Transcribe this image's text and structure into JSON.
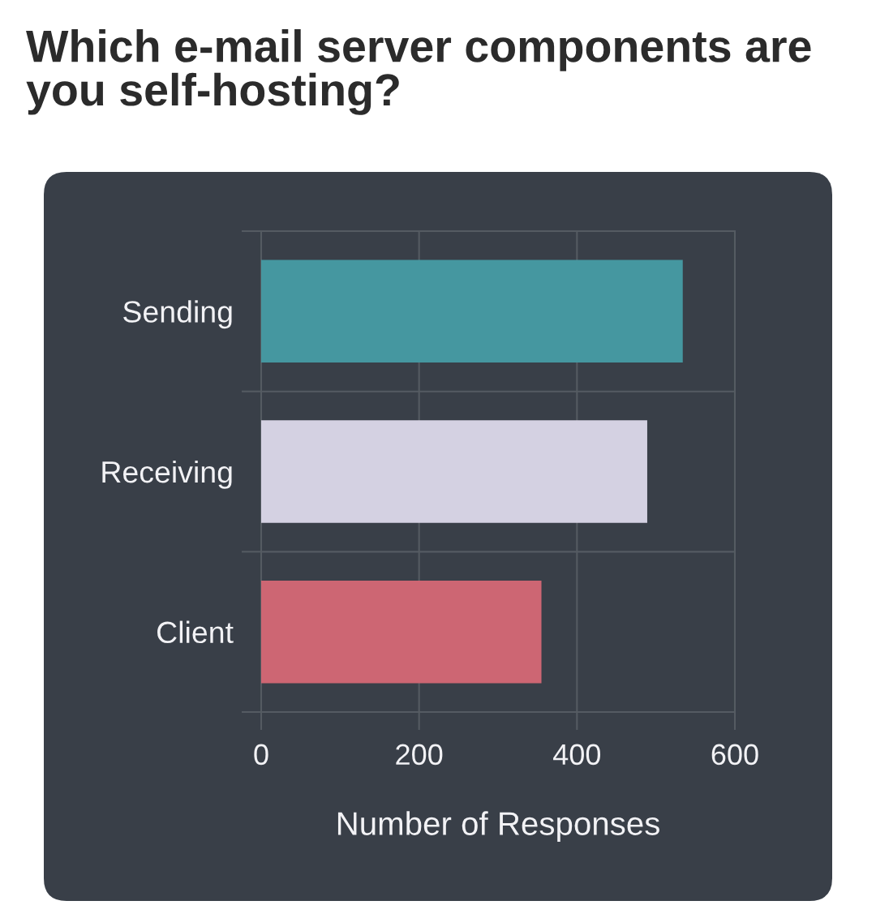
{
  "chart_data": {
    "type": "bar",
    "orientation": "horizontal",
    "title": "Which e-mail server components are you self-hosting?",
    "xlabel": "Number of Responses",
    "categories": [
      "Sending",
      "Receiving",
      "Client"
    ],
    "values": [
      534,
      489,
      355
    ],
    "colors": [
      "#4597a0",
      "#d4d1e2",
      "#cd6673"
    ],
    "xlim": [
      0,
      600
    ],
    "xticks": [
      0,
      200,
      400,
      600
    ],
    "grid": true
  }
}
